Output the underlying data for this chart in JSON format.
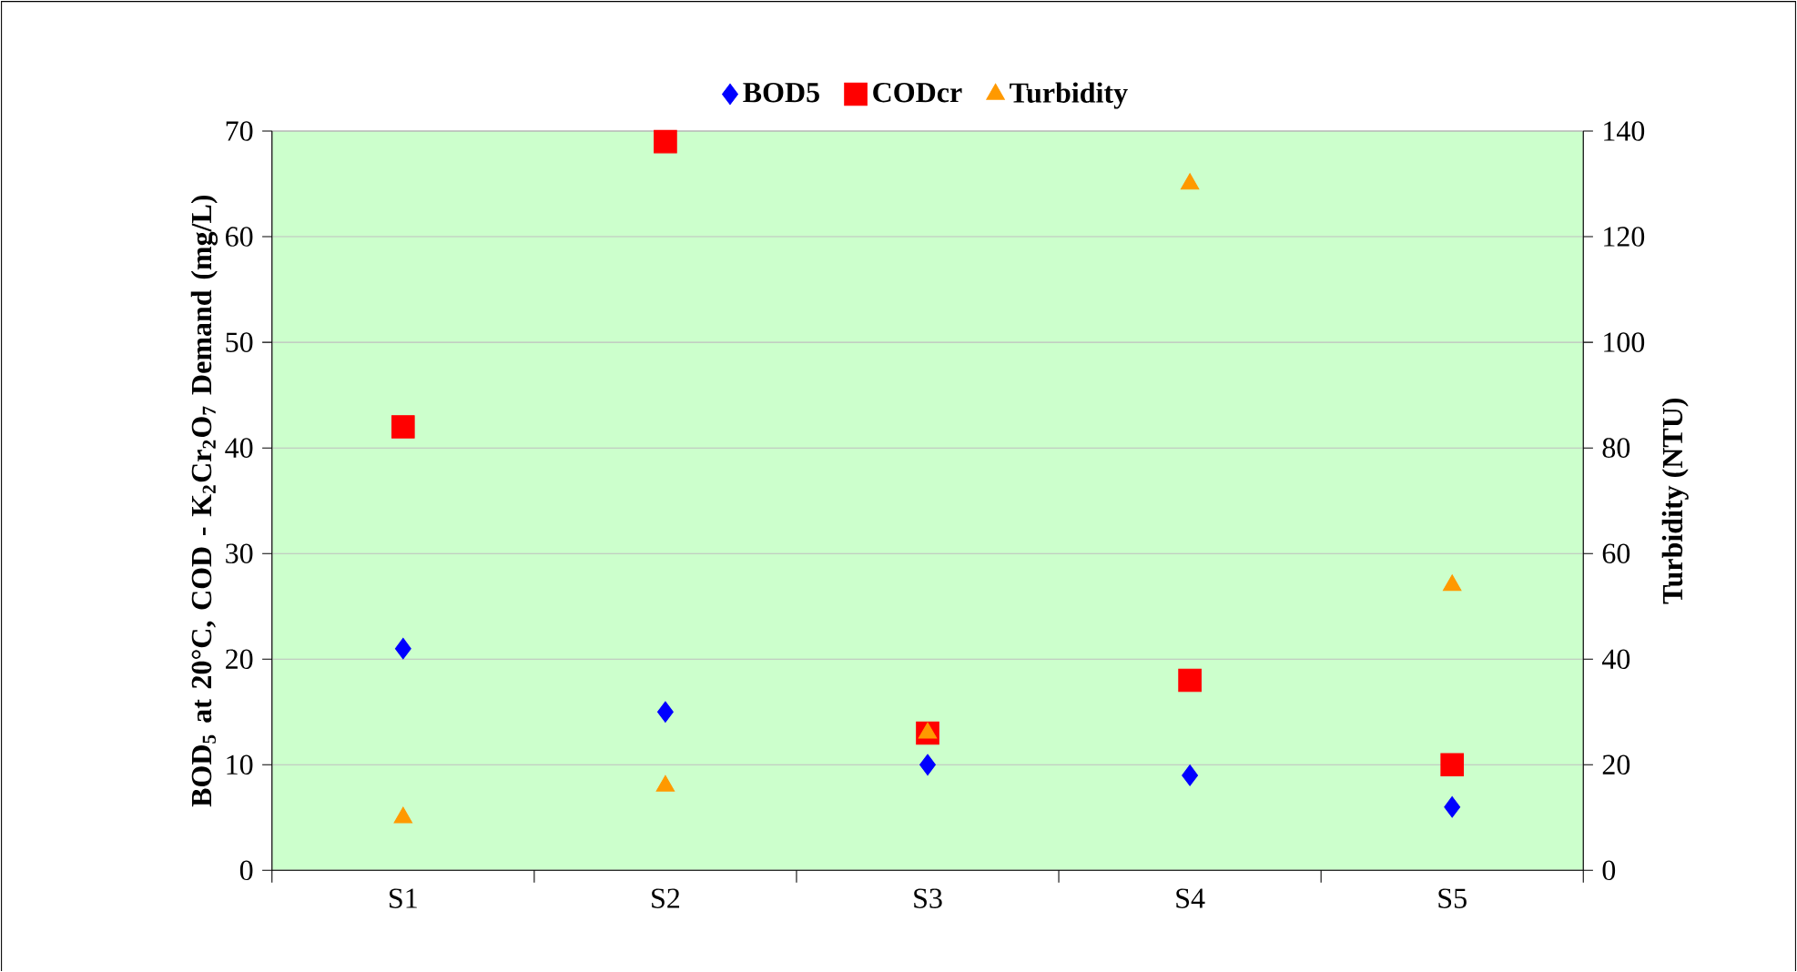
{
  "chart_data": {
    "type": "scatter",
    "categories": [
      "S1",
      "S2",
      "S3",
      "S4",
      "S5"
    ],
    "ylabel": "BOD$_{5}$ at 20°C, COD - K$_{2}$Cr$_{2}$O$_{7}$ Demand (mg/L)",
    "y2label": "Turbidity (NTU)",
    "series": [
      {
        "name": "BOD5",
        "color": "#0000ff",
        "marker": "diamond",
        "values": [
          21,
          15,
          10,
          9,
          6
        ]
      },
      {
        "name": "CODcr",
        "color": "#ff0000",
        "marker": "square",
        "values": [
          42,
          69,
          13,
          18,
          10
        ]
      },
      {
        "name": "Turbidity",
        "color": "#ff9900",
        "marker": "triangle",
        "axis": "y2",
        "values": [
          10,
          16,
          26,
          130,
          54
        ]
      }
    ],
    "ylim": [
      0,
      70
    ],
    "yticks": [
      0,
      10,
      20,
      30,
      40,
      50,
      60,
      70
    ],
    "y2lim": [
      0,
      140
    ],
    "y2ticks": [
      0,
      20,
      40,
      60,
      80,
      100,
      120,
      140
    ],
    "grid": "y",
    "legend": "top"
  }
}
